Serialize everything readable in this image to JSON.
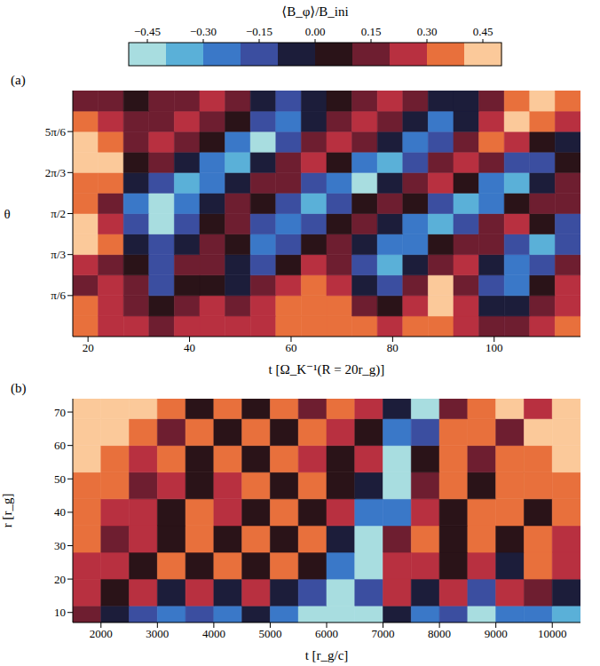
{
  "colorbar": {
    "label": "⟨B_φ⟩/B_ini",
    "range": [
      -0.5,
      0.5
    ],
    "ticks": [
      {
        "value": -0.45,
        "label": "−0.45"
      },
      {
        "value": -0.3,
        "label": "−0.30"
      },
      {
        "value": -0.15,
        "label": "−0.15"
      },
      {
        "value": 0,
        "label": "0.00"
      },
      {
        "value": 0.15,
        "label": "0.15"
      },
      {
        "value": 0.3,
        "label": "0.30"
      },
      {
        "value": 0.45,
        "label": "0.45"
      }
    ],
    "colors": [
      "#a8dde0",
      "#5ab0d8",
      "#3a78c8",
      "#3b4ea0",
      "#1c1d3a",
      "#2a1318",
      "#6e1e30",
      "#b83040",
      "#e8703c",
      "#fbc99a"
    ]
  },
  "chart_data": [
    {
      "type": "heatmap",
      "panel": "(a)",
      "x_label": "t [Ω_K⁻¹(R = 20r_g)]",
      "y_label": "θ",
      "xlim": [
        17,
        117
      ],
      "xticks": [
        20,
        40,
        60,
        80,
        100
      ],
      "ylim": [
        0,
        3.1416
      ],
      "yticks": [
        {
          "value": 0.5236,
          "label": "π/6"
        },
        {
          "value": 1.0472,
          "label": "π/3"
        },
        {
          "value": 1.5708,
          "label": "π/2"
        },
        {
          "value": 2.0944,
          "label": "2π/3"
        },
        {
          "value": 2.618,
          "label": "5π/6"
        }
      ],
      "x_edges": [
        17,
        22,
        27,
        32,
        37,
        42,
        47,
        52,
        57,
        62,
        67,
        72,
        77,
        82,
        87,
        92,
        97,
        102,
        107,
        112,
        117
      ],
      "y_edges": [
        0,
        0.2618,
        0.5236,
        0.7854,
        1.0472,
        1.309,
        1.5708,
        1.8326,
        2.0944,
        2.3562,
        2.618,
        2.8798,
        3.1416
      ],
      "cells": [
        [
          0.3,
          0.25,
          0.2,
          0.15,
          0.2,
          0.25,
          0.2,
          0.25,
          0.3,
          0.3,
          0.35,
          0.3,
          0.25,
          0.3,
          0.35,
          0.2,
          0.1,
          0.15,
          0.2,
          0.3
        ],
        [
          0.3,
          0.2,
          0.15,
          0.05,
          0.1,
          0.2,
          0.1,
          0.2,
          0.3,
          0.35,
          0.3,
          0.15,
          0.0,
          0.2,
          0.4,
          0.2,
          -0.05,
          -0.1,
          0.1,
          0.25
        ],
        [
          0.15,
          0.2,
          0.1,
          -0.2,
          0.0,
          0.05,
          -0.1,
          0.1,
          0.25,
          0.35,
          0.2,
          -0.1,
          -0.2,
          0.1,
          0.4,
          0.1,
          -0.2,
          -0.25,
          0.05,
          0.2
        ],
        [
          0.2,
          0.1,
          0.0,
          -0.15,
          0.1,
          0.15,
          -0.1,
          -0.2,
          0.05,
          0.2,
          0.1,
          -0.2,
          -0.35,
          -0.1,
          0.15,
          0.2,
          -0.1,
          -0.3,
          -0.2,
          0.1
        ],
        [
          0.45,
          0.3,
          -0.05,
          -0.2,
          -0.1,
          0.1,
          0.0,
          -0.25,
          -0.2,
          0.05,
          0.15,
          -0.05,
          -0.3,
          -0.25,
          0.0,
          0.15,
          0.1,
          -0.2,
          -0.35,
          -0.2
        ],
        [
          0.4,
          0.2,
          -0.2,
          -0.4,
          -0.2,
          0.05,
          0.1,
          -0.15,
          -0.3,
          -0.2,
          0.0,
          0.1,
          -0.1,
          -0.25,
          -0.35,
          -0.15,
          0.1,
          0.2,
          0.05,
          -0.2
        ],
        [
          0.3,
          0.1,
          -0.3,
          -0.45,
          -0.3,
          -0.1,
          0.1,
          0.05,
          -0.2,
          -0.35,
          -0.2,
          0.05,
          0.15,
          0.05,
          -0.2,
          -0.35,
          -0.3,
          0.0,
          0.15,
          0.1
        ],
        [
          0.35,
          0.3,
          -0.1,
          -0.2,
          -0.35,
          -0.3,
          -0.05,
          0.15,
          0.1,
          -0.15,
          -0.3,
          -0.4,
          -0.1,
          0.15,
          0.2,
          0.0,
          -0.25,
          -0.35,
          -0.1,
          0.1
        ],
        [
          0.45,
          0.4,
          0.05,
          0.1,
          -0.1,
          -0.3,
          -0.35,
          -0.1,
          0.15,
          0.2,
          0.0,
          -0.25,
          -0.35,
          -0.2,
          0.1,
          0.25,
          0.1,
          -0.15,
          -0.2,
          0.05
        ],
        [
          0.45,
          0.35,
          0.1,
          0.2,
          0.15,
          0.0,
          -0.3,
          -0.4,
          -0.2,
          0.1,
          0.25,
          0.15,
          -0.1,
          -0.3,
          -0.15,
          0.15,
          0.3,
          0.2,
          0.0,
          -0.1
        ],
        [
          0.3,
          0.2,
          0.1,
          0.15,
          0.2,
          0.15,
          0.0,
          -0.2,
          -0.3,
          -0.1,
          0.1,
          0.2,
          0.1,
          -0.1,
          -0.3,
          -0.1,
          0.2,
          0.4,
          0.35,
          0.2
        ],
        [
          0.15,
          0.1,
          0.05,
          0.1,
          0.15,
          0.2,
          0.1,
          -0.05,
          -0.15,
          -0.1,
          0.05,
          0.15,
          0.2,
          0.1,
          -0.1,
          -0.05,
          0.1,
          0.3,
          0.45,
          0.3
        ]
      ]
    },
    {
      "type": "heatmap",
      "panel": "(b)",
      "x_label": "t [r_g/c]",
      "y_label": "r [r_g]",
      "xlim": [
        1500,
        10500
      ],
      "xticks": [
        2000,
        3000,
        4000,
        5000,
        6000,
        7000,
        8000,
        9000,
        10000
      ],
      "ylim": [
        7,
        74
      ],
      "yticks": [
        10,
        20,
        30,
        40,
        50,
        60,
        70
      ],
      "x_edges": [
        1500,
        2000,
        2500,
        3000,
        3500,
        4000,
        4500,
        5000,
        5500,
        6000,
        6500,
        7000,
        7500,
        8000,
        8500,
        9000,
        9500,
        10000,
        10500
      ],
      "y_edges": [
        7,
        12,
        20,
        28,
        36,
        44,
        52,
        60,
        68,
        74
      ],
      "cells": [
        [
          0.1,
          -0.1,
          -0.2,
          -0.3,
          -0.2,
          -0.3,
          -0.1,
          -0.3,
          -0.4,
          -0.5,
          -0.45,
          -0.1,
          -0.3,
          -0.2,
          -0.4,
          -0.3,
          -0.3,
          -0.35
        ],
        [
          0.2,
          0.05,
          0.2,
          -0.1,
          0.25,
          -0.1,
          0.2,
          -0.1,
          -0.2,
          -0.45,
          -0.2,
          0.2,
          -0.1,
          0.2,
          -0.2,
          0.2,
          0.1,
          -0.1
        ],
        [
          0.25,
          0.2,
          0.0,
          0.3,
          0.0,
          0.3,
          0.05,
          0.3,
          0.0,
          -0.3,
          -0.4,
          0.2,
          0.25,
          0.0,
          0.25,
          -0.1,
          0.3,
          0.2
        ],
        [
          0.3,
          0.15,
          0.25,
          0.0,
          0.3,
          0.0,
          0.3,
          0.05,
          0.3,
          -0.1,
          -0.45,
          0.1,
          0.3,
          0.0,
          0.3,
          0.0,
          0.3,
          0.25
        ],
        [
          0.3,
          0.2,
          0.25,
          0.0,
          0.3,
          0.2,
          0.0,
          0.3,
          0.05,
          0.25,
          -0.3,
          -0.3,
          0.2,
          0.05,
          0.3,
          0.3,
          0.0,
          0.3
        ],
        [
          0.35,
          0.3,
          0.1,
          0.25,
          0.05,
          0.25,
          0.3,
          0.0,
          0.3,
          0.0,
          -0.1,
          -0.45,
          0.1,
          0.3,
          0.0,
          0.3,
          0.35,
          0.3
        ],
        [
          0.4,
          0.35,
          0.2,
          0.3,
          0.0,
          0.3,
          0.05,
          0.3,
          0.25,
          0.05,
          0.25,
          -0.4,
          0.0,
          0.3,
          0.1,
          0.35,
          0.3,
          0.4
        ],
        [
          0.45,
          0.4,
          0.35,
          0.1,
          0.3,
          0.0,
          0.3,
          0.05,
          0.35,
          0.2,
          0.0,
          -0.3,
          -0.2,
          0.3,
          0.35,
          0.1,
          0.4,
          0.4
        ],
        [
          0.45,
          0.45,
          0.4,
          0.3,
          0.05,
          0.3,
          0.0,
          0.3,
          0.1,
          0.35,
          0.2,
          -0.1,
          -0.4,
          0.1,
          0.3,
          0.4,
          0.2,
          0.45
        ]
      ]
    }
  ]
}
